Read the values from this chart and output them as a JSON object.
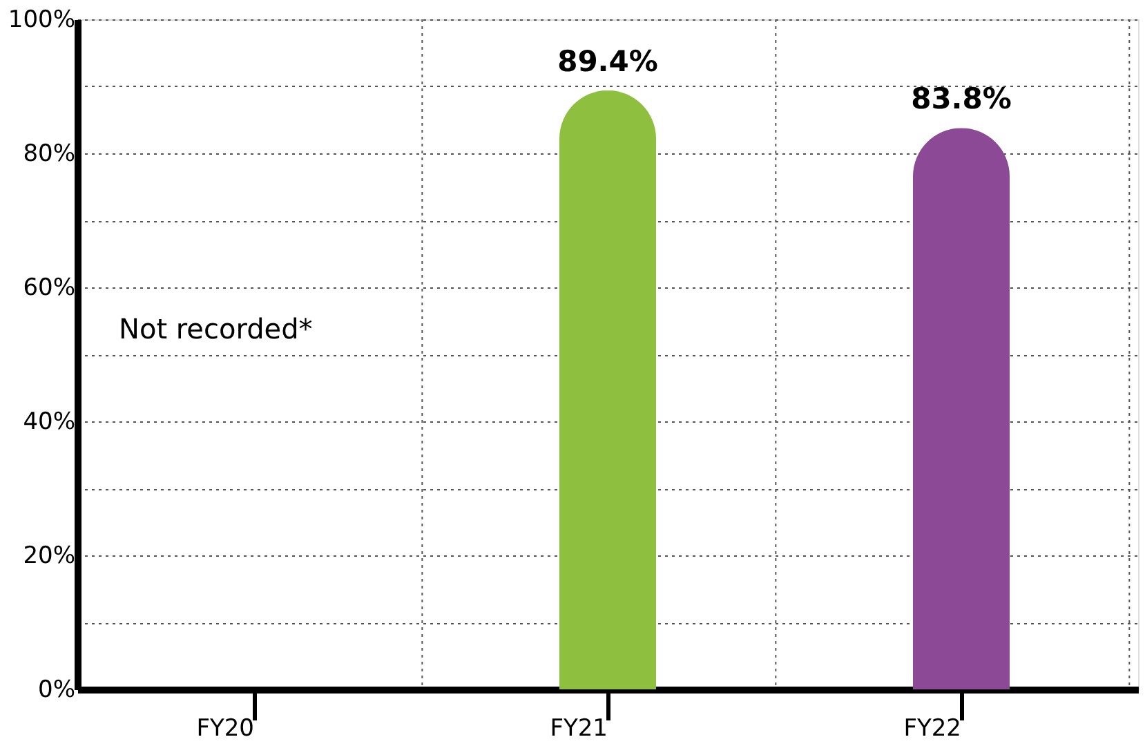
{
  "chart_data": {
    "type": "bar",
    "categories": [
      "FY20",
      "FY21",
      "FY22"
    ],
    "values": [
      null,
      89.4,
      83.8
    ],
    "colors": [
      "#8fbf3f",
      "#8fbf3f",
      "#8c4a96"
    ],
    "value_labels": [
      null,
      "89.4%",
      "83.8%"
    ],
    "ylim": [
      0,
      100
    ],
    "yticks": [
      {
        "value": 0,
        "label": "0%"
      },
      {
        "value": 10,
        "label": null
      },
      {
        "value": 20,
        "label": "20%"
      },
      {
        "value": 30,
        "label": null
      },
      {
        "value": 40,
        "label": "40%"
      },
      {
        "value": 50,
        "label": null
      },
      {
        "value": 60,
        "label": "60%"
      },
      {
        "value": 70,
        "label": null
      },
      {
        "value": 80,
        "label": "80%"
      },
      {
        "value": 90,
        "label": null
      },
      {
        "value": 100,
        "label": "100%"
      }
    ],
    "grid": true,
    "annotations": [
      "Not recorded*"
    ]
  }
}
